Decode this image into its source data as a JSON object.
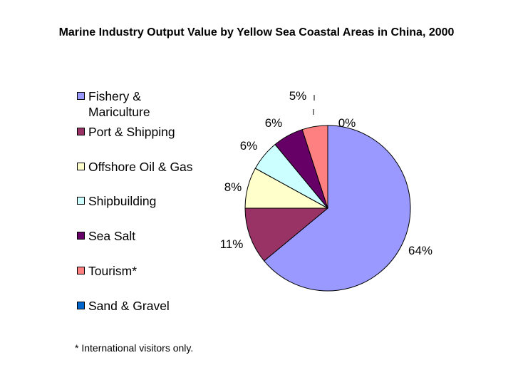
{
  "chart_data": {
    "type": "pie",
    "title": "Marine Industry Output Value by Yellow Sea Coastal Areas in China, 2000",
    "legend_position": "left",
    "categories": [
      "Fishery & Mariculture",
      "Port & Shipping",
      "Offshore Oil & Gas",
      "Shipbuilding",
      "Sea Salt",
      "Tourism*",
      "Sand & Gravel"
    ],
    "values": [
      64,
      11,
      8,
      6,
      6,
      5,
      0
    ],
    "data_labels": [
      "64%",
      "11%",
      "8%",
      "6%",
      "6%",
      "5%",
      "0%"
    ],
    "colors": [
      "#9999ff",
      "#993366",
      "#ffffcc",
      "#ccffff",
      "#660066",
      "#ff8080",
      "#0066cc"
    ],
    "footnote": "* International visitors only."
  }
}
